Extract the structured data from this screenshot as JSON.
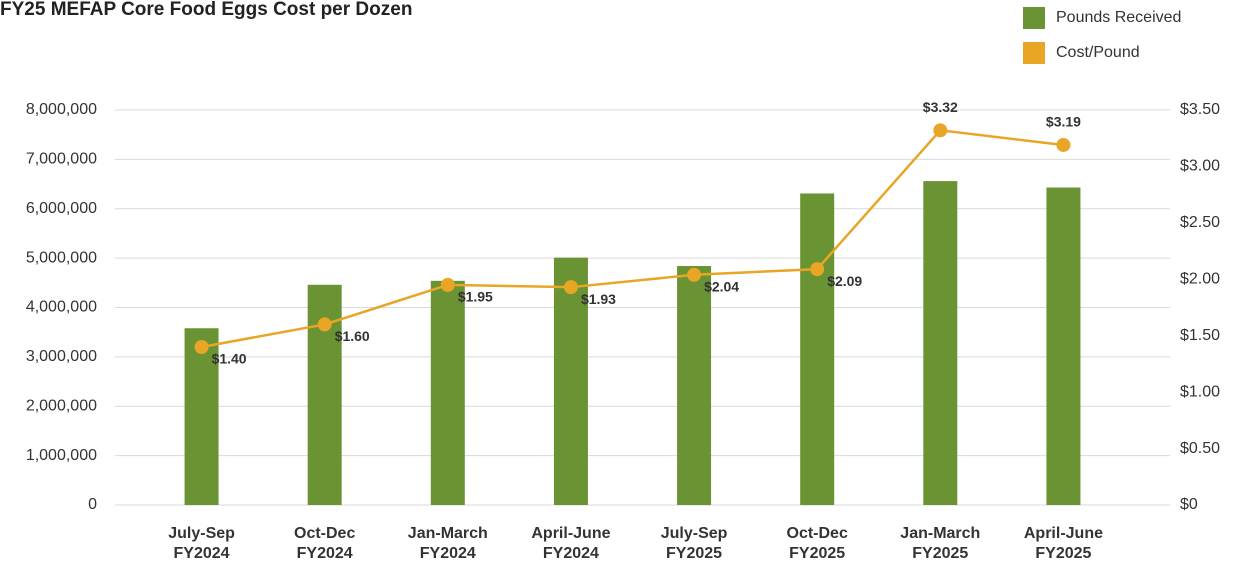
{
  "chart_data": {
    "type": "bar_line",
    "title": "FY25 MEFAP Core Food Eggs Cost per Dozen",
    "categories": [
      "July-Sep FY2024",
      "Oct-Dec FY2024",
      "Jan-March FY2024",
      "April-June FY2024",
      "July-Sep FY2025",
      "Oct-Dec FY2025",
      "Jan-March FY2025",
      "April-June FY2025"
    ],
    "series": [
      {
        "name": "Pounds Received",
        "color": "#6a9433",
        "type": "bar",
        "values": [
          3580000,
          4460000,
          4540000,
          5010000,
          4840000,
          6310000,
          6560000,
          6430000
        ]
      },
      {
        "name": "Cost/Pound",
        "color": "#e8a526",
        "type": "line",
        "axis": "y2",
        "values": [
          1.4,
          1.6,
          1.95,
          1.93,
          2.04,
          2.09,
          3.32,
          3.19
        ],
        "value_labels": [
          "$1.40",
          "$1.60",
          "$1.95",
          "$1.93",
          "$2.04",
          "$2.09",
          "$3.32",
          "$3.19"
        ]
      }
    ],
    "ylim": [
      0,
      8000000
    ],
    "yticks": [
      {
        "value": 0,
        "label": "0"
      },
      {
        "value": 1000000,
        "label": "1,000,000"
      },
      {
        "value": 2000000,
        "label": "2,000,000"
      },
      {
        "value": 3000000,
        "label": "3,000,000"
      },
      {
        "value": 4000000,
        "label": "4,000,000"
      },
      {
        "value": 5000000,
        "label": "5,000,000"
      },
      {
        "value": 6000000,
        "label": "6,000,000"
      },
      {
        "value": 7000000,
        "label": "7,000,000"
      },
      {
        "value": 8000000,
        "label": "8,000,000"
      }
    ],
    "y2lim": [
      0,
      3.5
    ],
    "y2ticks": [
      {
        "value": 0,
        "label": "$0"
      },
      {
        "value": 0.5,
        "label": "$0.50"
      },
      {
        "value": 1,
        "label": "$1.00"
      },
      {
        "value": 1.5,
        "label": "$1.50"
      },
      {
        "value": 2,
        "label": "$2.00"
      },
      {
        "value": 2.5,
        "label": "$2.50"
      },
      {
        "value": 3,
        "label": "$3.00"
      },
      {
        "value": 3.5,
        "label": "$3.50"
      }
    ],
    "grid": true,
    "legend": "top-right"
  }
}
